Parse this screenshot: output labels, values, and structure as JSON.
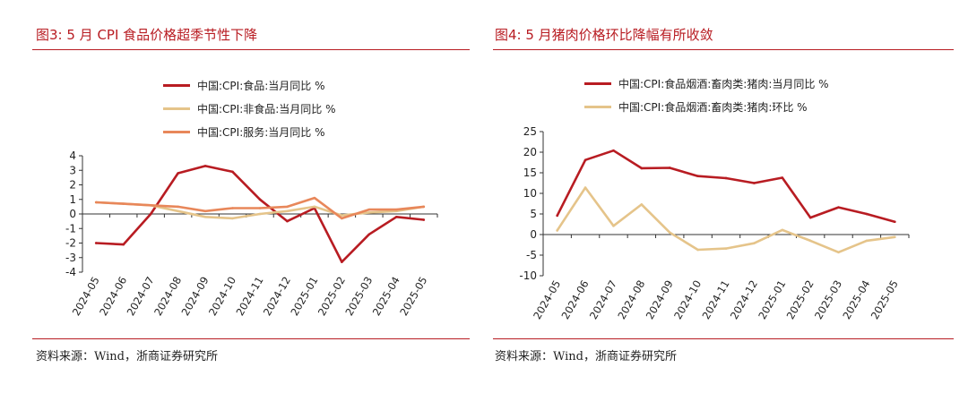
{
  "charts": [
    {
      "id": "left",
      "title": "图3:  5 月 CPI 食品价格超季节性下降",
      "source": "资料来源：Wind，浙商证券研究所",
      "chart_data": {
        "type": "line",
        "title": "图3:  5 月 CPI 食品价格超季节性下降",
        "categories": [
          "2024-05",
          "2024-06",
          "2024-07",
          "2024-08",
          "2024-09",
          "2024-10",
          "2024-11",
          "2024-12",
          "2025-01",
          "2025-02",
          "2025-03",
          "2025-04",
          "2025-05"
        ],
        "ylim": [
          -4,
          4
        ],
        "yticks": [
          -4,
          -3,
          -2,
          -1,
          0,
          1,
          2,
          3,
          4
        ],
        "legend_position": "top",
        "series": [
          {
            "name": "中国:CPI:食品:当月同比 %",
            "color": "#b81c22",
            "values": [
              -2.0,
              -2.1,
              0.0,
              2.8,
              3.3,
              2.9,
              1.0,
              -0.5,
              0.4,
              -3.3,
              -1.4,
              -0.2,
              -0.4
            ]
          },
          {
            "name": "中国:CPI:非食品:当月同比 %",
            "color": "#e5c48a",
            "values": [
              0.8,
              0.7,
              0.6,
              0.2,
              -0.2,
              -0.3,
              0.0,
              0.2,
              0.5,
              -0.1,
              0.1,
              0.2,
              0.5
            ]
          },
          {
            "name": "中国:CPI:服务:当月同比 %",
            "color": "#e8875a",
            "values": [
              0.8,
              0.7,
              0.6,
              0.5,
              0.2,
              0.4,
              0.4,
              0.5,
              1.1,
              -0.3,
              0.3,
              0.3,
              0.5
            ]
          }
        ]
      }
    },
    {
      "id": "right",
      "title": "图4:  5 月猪肉价格环比降幅有所收敛",
      "source": "资料来源：Wind，浙商证券研究所",
      "chart_data": {
        "type": "line",
        "title": "图4:  5 月猪肉价格环比降幅有所收敛",
        "categories": [
          "2024-05",
          "2024-06",
          "2024-07",
          "2024-08",
          "2024-09",
          "2024-10",
          "2024-11",
          "2024-12",
          "2025-01",
          "2025-02",
          "2025-03",
          "2025-04",
          "2025-05"
        ],
        "ylim": [
          -10,
          25
        ],
        "yticks": [
          -10,
          -5,
          0,
          5,
          10,
          15,
          20,
          25
        ],
        "legend_position": "top",
        "series": [
          {
            "name": "中国:CPI:食品烟酒:畜肉类:猪肉:当月同比 %",
            "color": "#b81c22",
            "values": [
              4.6,
              18.1,
              20.4,
              16.1,
              16.2,
              14.2,
              13.7,
              12.5,
              13.8,
              4.1,
              6.6,
              5.0,
              3.1
            ]
          },
          {
            "name": "中国:CPI:食品烟酒:畜肉类:猪肉:环比 %",
            "color": "#e5c48a",
            "values": [
              1.0,
              11.4,
              2.1,
              7.3,
              0.5,
              -3.7,
              -3.4,
              -2.1,
              1.1,
              -1.5,
              -4.3,
              -1.5,
              -0.6
            ]
          }
        ]
      }
    }
  ]
}
